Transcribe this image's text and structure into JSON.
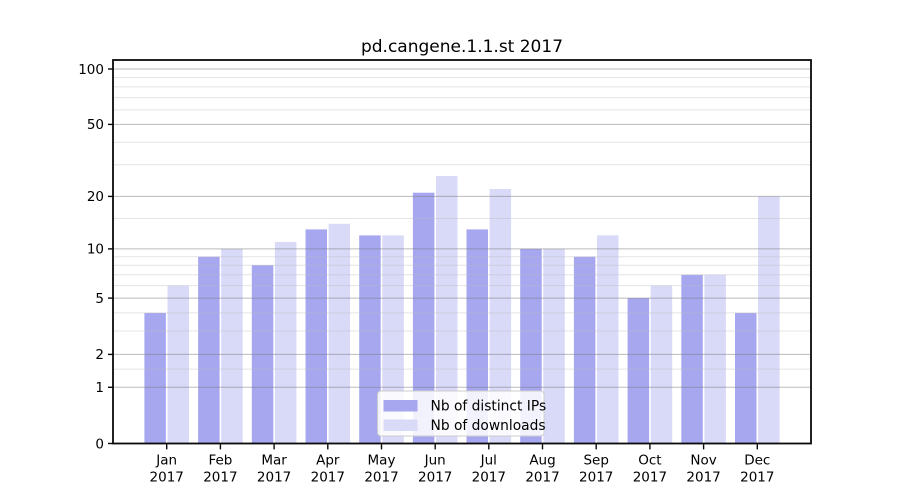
{
  "title": "pd.cangene.1.1.st 2017",
  "chart_data": {
    "type": "bar",
    "title": "pd.cangene.1.1.st 2017",
    "categories": [
      "Jan",
      "Feb",
      "Mar",
      "Apr",
      "May",
      "Jun",
      "Jul",
      "Aug",
      "Sep",
      "Oct",
      "Nov",
      "Dec"
    ],
    "year_label": "2017",
    "series": [
      {
        "name": "Nb of distinct IPs",
        "color": "#a7a7f0",
        "values": [
          4,
          9,
          8,
          13,
          12,
          21,
          13,
          10,
          9,
          5,
          7,
          4
        ]
      },
      {
        "name": "Nb of downloads",
        "color": "#d9d9f8",
        "values": [
          6,
          10,
          11,
          14,
          12,
          26,
          22,
          10,
          12,
          6,
          7,
          20
        ]
      }
    ],
    "y_scale": "log1p",
    "y_ticks": [
      0,
      1,
      2,
      5,
      10,
      20,
      50,
      100
    ],
    "y_minor_gridlines": [
      1.5,
      3,
      4,
      6,
      7,
      8,
      9,
      15,
      30,
      40,
      60,
      70,
      80,
      90
    ],
    "ylim": [
      0,
      112
    ],
    "grid": true,
    "legend": {
      "position": "lower center",
      "entries": [
        "Nb of distinct IPs",
        "Nb of downloads"
      ]
    }
  },
  "colors": {
    "background": "#ffffff",
    "axis": "#0a0a0a",
    "major_grid": "#777777",
    "major_grid_opacity": 0.5,
    "minor_grid": "#bbbbbb",
    "minor_grid_opacity": 0.4,
    "text": "#000000",
    "legend_border": "#cccccc",
    "legend_bg": "#ffffff",
    "legend_bg_opacity": 0.85
  }
}
